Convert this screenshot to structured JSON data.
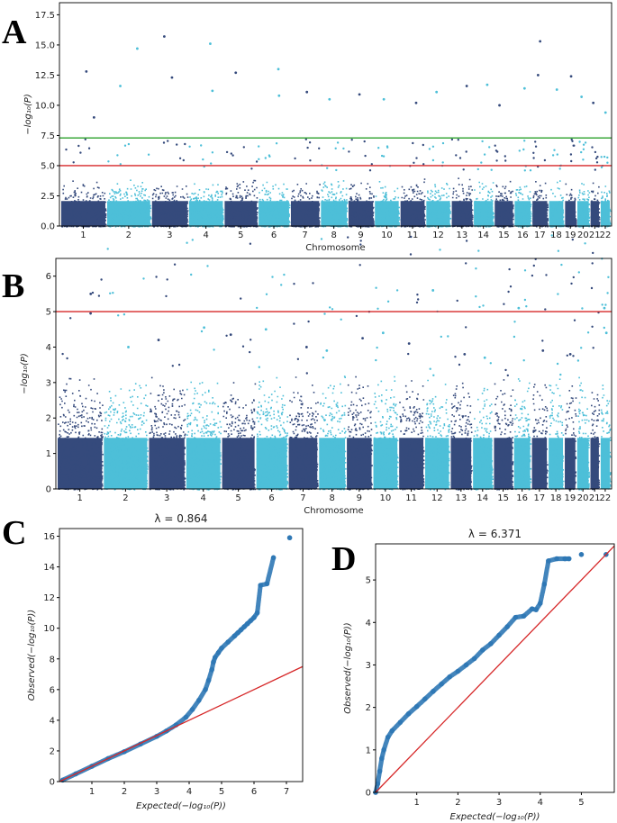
{
  "panels": {
    "A": "A",
    "B": "B",
    "C": "C",
    "D": "D"
  },
  "colors": {
    "dark": "#354a7c",
    "light": "#4dbfd8",
    "green_line": "#2ca02c",
    "red_line": "#d62728",
    "qq_point": "#2f78b5",
    "axis": "#000000"
  },
  "chart_data": [
    {
      "id": "A",
      "type": "scatter",
      "subtype": "manhattan",
      "xlabel": "Chromosome",
      "ylabel": "−log₁₀(P)",
      "ylim": [
        0,
        18.5
      ],
      "yticks": [
        "0.0",
        "2.5",
        "5.0",
        "7.5",
        "10.0",
        "12.5",
        "15.0",
        "17.5"
      ],
      "ytick_values": [
        0,
        2.5,
        5,
        7.5,
        10,
        12.5,
        15,
        17.5
      ],
      "categories": [
        "1",
        "2",
        "3",
        "4",
        "5",
        "6",
        "7",
        "8",
        "9",
        "10",
        "11",
        "12",
        "13",
        "14",
        "15",
        "16",
        "17",
        "18",
        "19",
        "20",
        "21",
        "22"
      ],
      "chrom_relative_sizes": [
        248,
        242,
        198,
        190,
        181,
        171,
        159,
        145,
        138,
        134,
        135,
        133,
        114,
        107,
        102,
        90,
        83,
        80,
        59,
        64,
        47,
        51
      ],
      "baseline_max": 4.6,
      "thresholds": [
        {
          "value": 7.3,
          "color": "green"
        },
        {
          "value": 5.0,
          "color": "red"
        }
      ],
      "peaks": [
        {
          "chrom": "1",
          "value": 9.0
        },
        {
          "chrom": "1",
          "value": 12.8
        },
        {
          "chrom": "2",
          "value": 14.7
        },
        {
          "chrom": "2",
          "value": 11.6
        },
        {
          "chrom": "3",
          "value": 15.7
        },
        {
          "chrom": "3",
          "value": 12.3
        },
        {
          "chrom": "4",
          "value": 15.1
        },
        {
          "chrom": "4",
          "value": 11.2
        },
        {
          "chrom": "5",
          "value": 12.7
        },
        {
          "chrom": "6",
          "value": 13.0
        },
        {
          "chrom": "6",
          "value": 10.8
        },
        {
          "chrom": "7",
          "value": 11.1
        },
        {
          "chrom": "8",
          "value": 10.5
        },
        {
          "chrom": "9",
          "value": 10.9
        },
        {
          "chrom": "10",
          "value": 10.5
        },
        {
          "chrom": "11",
          "value": 10.2
        },
        {
          "chrom": "12",
          "value": 11.1
        },
        {
          "chrom": "13",
          "value": 11.6
        },
        {
          "chrom": "14",
          "value": 11.7
        },
        {
          "chrom": "15",
          "value": 10.0
        },
        {
          "chrom": "16",
          "value": 11.4
        },
        {
          "chrom": "17",
          "value": 15.3
        },
        {
          "chrom": "17",
          "value": 12.5
        },
        {
          "chrom": "18",
          "value": 11.3
        },
        {
          "chrom": "19",
          "value": 12.4
        },
        {
          "chrom": "20",
          "value": 10.7
        },
        {
          "chrom": "21",
          "value": 10.2
        },
        {
          "chrom": "22",
          "value": 9.4
        }
      ]
    },
    {
      "id": "B",
      "type": "scatter",
      "subtype": "manhattan",
      "xlabel": "Chromosome",
      "ylabel": "−log₁₀(P)",
      "ylim": [
        0,
        6.5
      ],
      "yticks": [
        "0",
        "1",
        "2",
        "3",
        "4",
        "5",
        "6"
      ],
      "ytick_values": [
        0,
        1,
        2,
        3,
        4,
        5,
        6
      ],
      "categories": [
        "1",
        "2",
        "3",
        "4",
        "5",
        "6",
        "7",
        "8",
        "9",
        "10",
        "11",
        "12",
        "13",
        "14",
        "15",
        "16",
        "17",
        "18",
        "19",
        "20",
        "21",
        "22"
      ],
      "chrom_relative_sizes": [
        248,
        242,
        198,
        190,
        181,
        171,
        159,
        145,
        138,
        134,
        135,
        133,
        114,
        107,
        102,
        90,
        83,
        80,
        59,
        64,
        47,
        51
      ],
      "baseline_max": 3.2,
      "thresholds": [
        {
          "value": 5.0,
          "color": "red"
        }
      ],
      "peaks": [
        {
          "chrom": "1",
          "value": 5.5
        },
        {
          "chrom": "1",
          "value": 4.95
        },
        {
          "chrom": "2",
          "value": 4.0
        },
        {
          "chrom": "3",
          "value": 4.2
        },
        {
          "chrom": "4",
          "value": 4.55
        },
        {
          "chrom": "5",
          "value": 4.35
        },
        {
          "chrom": "6",
          "value": 4.5
        },
        {
          "chrom": "7",
          "value": 4.0
        },
        {
          "chrom": "8",
          "value": 3.9
        },
        {
          "chrom": "9",
          "value": 4.25
        },
        {
          "chrom": "10",
          "value": 4.4
        },
        {
          "chrom": "11",
          "value": 4.1
        },
        {
          "chrom": "12",
          "value": 5.6
        },
        {
          "chrom": "13",
          "value": 3.8
        },
        {
          "chrom": "14",
          "value": 3.7
        },
        {
          "chrom": "16",
          "value": 5.1
        },
        {
          "chrom": "17",
          "value": 3.9
        },
        {
          "chrom": "19",
          "value": 3.8
        },
        {
          "chrom": "22",
          "value": 5.1
        },
        {
          "chrom": "22",
          "value": 4.4
        }
      ]
    },
    {
      "id": "C",
      "type": "scatter",
      "subtype": "qq",
      "title": "λ = 0.864",
      "xlabel": "Expected(−log₁₀(P))",
      "ylabel": "Observed(−log₁₀(P))",
      "xlim": [
        0,
        7.5
      ],
      "ylim": [
        0,
        16.5
      ],
      "xticks": [
        "1",
        "2",
        "3",
        "4",
        "5",
        "6",
        "7"
      ],
      "xtick_values": [
        1,
        2,
        3,
        4,
        5,
        6,
        7
      ],
      "yticks": [
        "0",
        "2",
        "4",
        "6",
        "8",
        "10",
        "12",
        "14",
        "16"
      ],
      "ytick_values": [
        0,
        2,
        4,
        6,
        8,
        10,
        12,
        14,
        16
      ],
      "reference_line": {
        "slope": 1.0,
        "x_end": 7.5
      },
      "x": [
        0.1,
        0.5,
        1.0,
        1.5,
        2.0,
        2.5,
        3.0,
        3.3,
        3.6,
        3.9,
        4.1,
        4.3,
        4.5,
        4.6,
        4.7,
        4.75,
        4.8,
        4.9,
        5.0,
        5.2,
        5.4,
        5.5,
        5.6,
        5.7,
        5.8,
        5.9,
        6.0,
        6.1,
        6.2,
        6.4,
        6.6,
        7.1
      ],
      "y": [
        0.1,
        0.5,
        1.0,
        1.5,
        1.95,
        2.45,
        2.95,
        3.3,
        3.7,
        4.2,
        4.7,
        5.3,
        6.0,
        6.6,
        7.3,
        7.8,
        8.1,
        8.4,
        8.7,
        9.1,
        9.5,
        9.7,
        9.9,
        10.1,
        10.3,
        10.5,
        10.7,
        11.0,
        12.8,
        12.9,
        14.6,
        15.9
      ]
    },
    {
      "id": "D",
      "type": "scatter",
      "subtype": "qq",
      "title": "λ = 6.371",
      "xlabel": "Expected(−log₁₀(P))",
      "ylabel": "Observed(−log₁₀(P))",
      "xlim": [
        0,
        5.8
      ],
      "ylim": [
        0,
        5.85
      ],
      "xticks": [
        "1",
        "2",
        "3",
        "4",
        "5"
      ],
      "xtick_values": [
        1,
        2,
        3,
        4,
        5
      ],
      "yticks": [
        "0",
        "1",
        "2",
        "3",
        "4",
        "5"
      ],
      "ytick_values": [
        0,
        1,
        2,
        3,
        4,
        5
      ],
      "reference_line": {
        "slope": 1.0,
        "x_end": 5.8
      },
      "x": [
        0.0,
        0.05,
        0.1,
        0.15,
        0.2,
        0.3,
        0.4,
        0.6,
        0.8,
        1.0,
        1.2,
        1.4,
        1.6,
        1.8,
        2.0,
        2.2,
        2.4,
        2.6,
        2.8,
        3.0,
        3.2,
        3.4,
        3.6,
        3.8,
        3.9,
        4.0,
        4.1,
        4.2,
        4.4,
        4.6,
        4.7,
        5.0,
        5.6
      ],
      "y": [
        0.0,
        0.2,
        0.5,
        0.8,
        1.0,
        1.3,
        1.45,
        1.65,
        1.85,
        2.02,
        2.2,
        2.38,
        2.55,
        2.72,
        2.85,
        3.0,
        3.15,
        3.35,
        3.5,
        3.7,
        3.9,
        4.12,
        4.15,
        4.32,
        4.3,
        4.45,
        4.9,
        5.45,
        5.5,
        5.5,
        5.5,
        5.6,
        5.6
      ]
    }
  ]
}
